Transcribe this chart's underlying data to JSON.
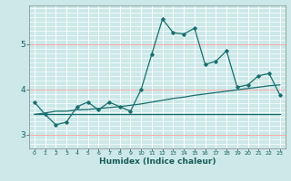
{
  "title": "",
  "xlabel": "Humidex (Indice chaleur)",
  "ylabel": "",
  "bg_color": "#cce8e8",
  "line_color": "#1a6e6e",
  "grid_color_major": "#ffb0b0",
  "grid_color_minor": "#ffffff",
  "x_ticks": [
    0,
    1,
    2,
    3,
    4,
    5,
    6,
    7,
    8,
    9,
    10,
    11,
    12,
    13,
    14,
    15,
    16,
    17,
    18,
    19,
    20,
    21,
    22,
    23
  ],
  "ylim": [
    2.7,
    5.85
  ],
  "yticks": [
    3,
    4,
    5
  ],
  "line1_x": [
    0,
    1,
    2,
    3,
    4,
    5,
    6,
    7,
    8,
    9,
    10,
    11,
    12,
    13,
    14,
    15,
    16,
    17,
    18,
    19,
    20,
    21,
    22,
    23
  ],
  "line1_y": [
    3.72,
    3.45,
    3.22,
    3.28,
    3.62,
    3.72,
    3.55,
    3.72,
    3.62,
    3.52,
    4.0,
    4.78,
    5.55,
    5.25,
    5.22,
    5.35,
    4.55,
    4.62,
    4.85,
    4.05,
    4.1,
    4.3,
    4.35,
    3.88
  ],
  "line2_x": [
    0,
    1,
    2,
    3,
    4,
    5,
    6,
    7,
    8,
    9,
    10,
    11,
    12,
    13,
    14,
    15,
    16,
    17,
    18,
    19,
    20,
    21,
    22,
    23
  ],
  "line2_y": [
    3.45,
    3.45,
    3.45,
    3.45,
    3.45,
    3.45,
    3.45,
    3.45,
    3.45,
    3.45,
    3.45,
    3.45,
    3.45,
    3.45,
    3.45,
    3.45,
    3.45,
    3.45,
    3.45,
    3.45,
    3.45,
    3.45,
    3.45,
    3.45
  ],
  "line3_x": [
    0,
    1,
    2,
    3,
    4,
    5,
    6,
    7,
    8,
    9,
    10,
    11,
    12,
    13,
    14,
    15,
    16,
    17,
    18,
    19,
    20,
    21,
    22,
    23
  ],
  "line3_y": [
    3.45,
    3.48,
    3.52,
    3.52,
    3.55,
    3.56,
    3.58,
    3.6,
    3.62,
    3.65,
    3.68,
    3.72,
    3.76,
    3.8,
    3.83,
    3.87,
    3.9,
    3.93,
    3.96,
    3.99,
    4.02,
    4.05,
    4.08,
    4.1
  ]
}
